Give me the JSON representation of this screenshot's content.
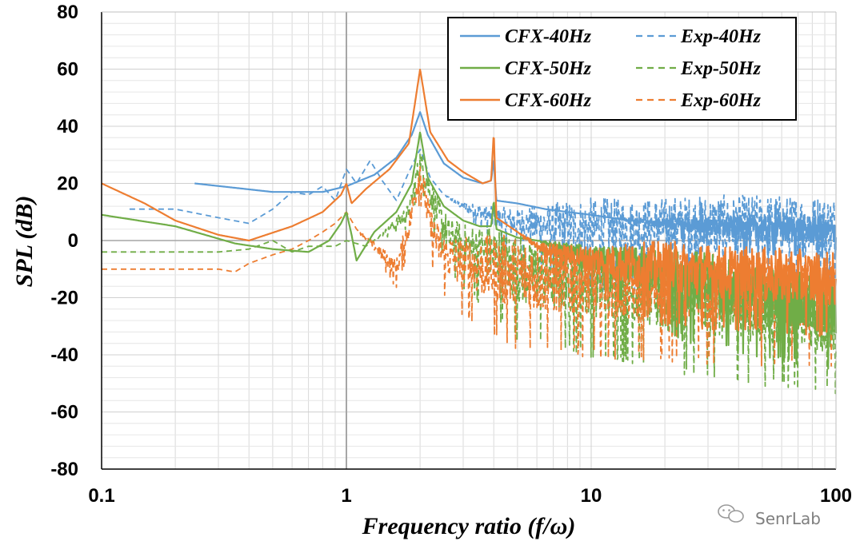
{
  "chart_data": {
    "type": "line",
    "xlabel": "Frequency ratio (f/ω)",
    "ylabel": "SPL (dB)",
    "x_scale": "log",
    "xlim": [
      0.1,
      100
    ],
    "ylim": [
      -80,
      80
    ],
    "x_ticks": [
      0.1,
      1,
      10,
      100
    ],
    "x_tick_labels": [
      "0.1",
      "1",
      "10",
      "100"
    ],
    "y_ticks": [
      -80,
      -60,
      -40,
      -20,
      0,
      20,
      40,
      60,
      80
    ],
    "y_tick_labels": [
      "-80",
      "-60",
      "-40",
      "-20",
      "0",
      "20",
      "40",
      "60",
      "80"
    ],
    "grid": true,
    "legend_position": "top-right",
    "series": [
      {
        "name": "CFX-40Hz",
        "color": "#5b9bd5",
        "style": "solid",
        "x": [
          0.24,
          0.5,
          0.8,
          1.0,
          1.3,
          1.6,
          1.85,
          2.0,
          2.15,
          2.5,
          3.0,
          3.6,
          3.9,
          4.0,
          4.1,
          5.0,
          6.5,
          8.0,
          10.0,
          12.0,
          15.0,
          20.0,
          30.0,
          50.0,
          70.0,
          100.0
        ],
        "y": [
          20,
          17,
          17,
          19,
          23,
          29,
          37,
          45,
          37,
          27,
          22,
          20,
          21,
          28,
          14,
          13,
          11,
          10,
          9,
          8,
          7,
          6,
          5,
          4,
          4,
          3
        ],
        "noise_from": 12,
        "noise_amp": 5
      },
      {
        "name": "CFX-50Hz",
        "color": "#70ad47",
        "style": "solid",
        "x": [
          0.1,
          0.2,
          0.35,
          0.5,
          0.7,
          0.85,
          0.95,
          1.0,
          1.05,
          1.1,
          1.3,
          1.6,
          1.85,
          2.0,
          2.15,
          2.5,
          3.0,
          3.5,
          3.9,
          4.0,
          4.1,
          5.0,
          6.0,
          8.0,
          10.0,
          20.0,
          40.0,
          70.0,
          100.0
        ],
        "y": [
          9,
          5,
          -1,
          -3,
          -4,
          0,
          6,
          10,
          2,
          -7,
          3,
          10,
          20,
          38,
          22,
          12,
          7,
          5,
          5,
          14,
          4,
          1,
          0,
          -3,
          -6,
          -12,
          -18,
          -22,
          -25
        ],
        "noise_from": 6,
        "noise_amp": 11
      },
      {
        "name": "CFX-60Hz",
        "color": "#ed7d31",
        "style": "solid",
        "x": [
          0.1,
          0.15,
          0.2,
          0.3,
          0.4,
          0.6,
          0.8,
          0.95,
          1.0,
          1.05,
          1.2,
          1.5,
          1.8,
          2.0,
          2.2,
          2.6,
          3.0,
          3.6,
          3.9,
          4.0,
          4.1,
          5.0,
          6.0,
          8.0,
          10.0,
          20.0,
          40.0,
          70.0,
          100.0
        ],
        "y": [
          20,
          13,
          7,
          2,
          0,
          5,
          10,
          16,
          20,
          13,
          18,
          25,
          34,
          60,
          38,
          28,
          24,
          20,
          21,
          38,
          8,
          3,
          -2,
          -5,
          -7,
          -10,
          -12,
          -13,
          -14
        ],
        "noise_from": 5,
        "noise_amp": 10
      },
      {
        "name": "Exp-40Hz",
        "color": "#5b9bd5",
        "style": "dashed",
        "x": [
          0.13,
          0.2,
          0.3,
          0.4,
          0.5,
          0.6,
          0.7,
          0.8,
          0.9,
          1.0,
          1.1,
          1.25,
          1.4,
          1.6,
          1.8,
          2.0,
          2.2,
          2.5,
          3.0,
          4.0,
          5.0,
          7.0,
          10.0,
          15.0,
          30.0,
          70.0,
          100.0
        ],
        "y": [
          11,
          11,
          8,
          6,
          11,
          17,
          16,
          19,
          14,
          25,
          20,
          28,
          21,
          14,
          24,
          32,
          22,
          16,
          12,
          8,
          6,
          5,
          4,
          4,
          5,
          5,
          5
        ],
        "noise_from": 2.5,
        "noise_amp": 11
      },
      {
        "name": "Exp-50Hz",
        "color": "#70ad47",
        "style": "dashed",
        "x": [
          0.1,
          0.2,
          0.3,
          0.4,
          0.5,
          0.6,
          0.7,
          0.8,
          0.9,
          1.0,
          1.2,
          1.5,
          1.8,
          2.0,
          2.3,
          2.6,
          3.0,
          4.0,
          5.0,
          10.0,
          20.0,
          50.0,
          100.0
        ],
        "y": [
          -4,
          -4,
          -4,
          -3,
          0,
          -4,
          -2,
          -2,
          -2,
          0,
          -2,
          4,
          10,
          28,
          12,
          2,
          -2,
          -5,
          -10,
          -15,
          -20,
          -25,
          -28
        ],
        "noise_from": 1.3,
        "noise_amp": 13
      },
      {
        "name": "Exp-60Hz",
        "color": "#ed7d31",
        "style": "dashed",
        "x": [
          0.1,
          0.15,
          0.2,
          0.3,
          0.35,
          0.4,
          0.5,
          0.6,
          0.7,
          0.8,
          0.9,
          1.0,
          1.1,
          1.3,
          1.6,
          1.8,
          2.0,
          2.2,
          2.5,
          3.0,
          4.0,
          5.0,
          10.0,
          20.0,
          50.0,
          100.0
        ],
        "y": [
          -10,
          -10,
          -10,
          -10,
          -11,
          -8,
          -5,
          -3,
          0,
          3,
          6,
          10,
          4,
          -2,
          -10,
          5,
          25,
          5,
          -5,
          -8,
          -10,
          -12,
          -15,
          -17,
          -18,
          -20
        ],
        "noise_from": 1.1,
        "noise_amp": 13
      }
    ]
  },
  "watermark": {
    "text": "SenrLab",
    "icon": "wechat-icon"
  }
}
